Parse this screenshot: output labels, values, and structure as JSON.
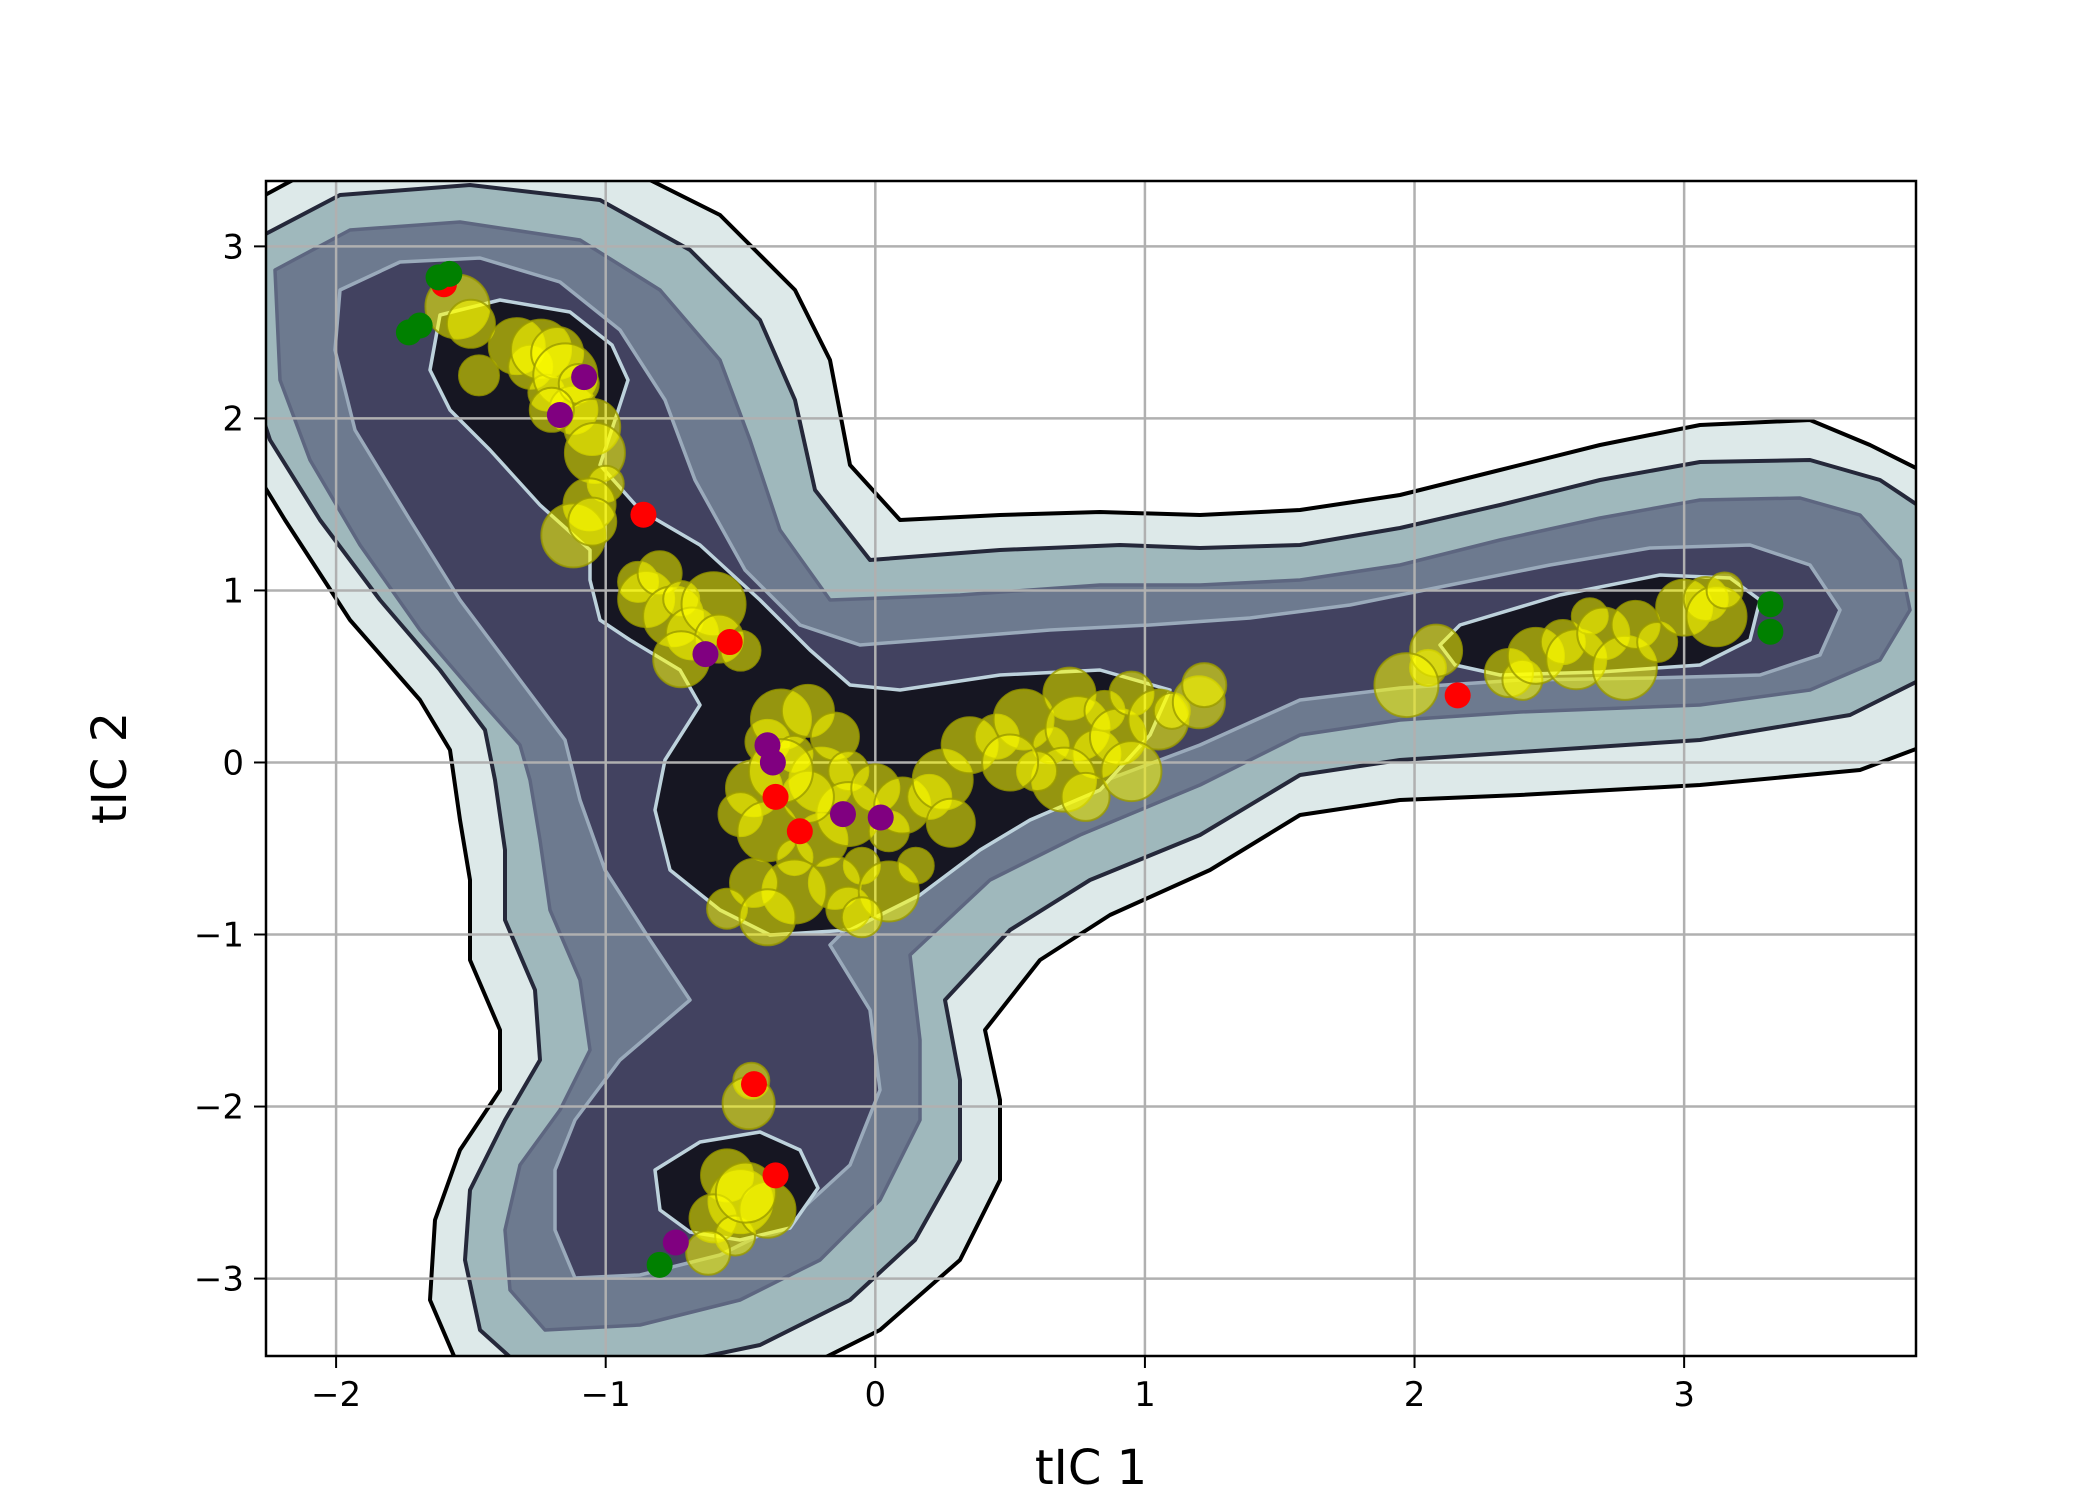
{
  "chart_data": {
    "type": "scatter",
    "title": "",
    "xlabel": "tIC 1",
    "ylabel": "tIC 2",
    "xlim": [
      -2.26,
      3.86
    ],
    "ylim": [
      -3.45,
      3.38
    ],
    "xticks": [
      -2,
      -1,
      0,
      1,
      2,
      3
    ],
    "yticks": [
      -3,
      -2,
      -1,
      0,
      1,
      2,
      3
    ],
    "grid": true,
    "legend": "none",
    "colors": {
      "background": "#ffffff",
      "contour_levels": [
        "#dde9e9",
        "#9fb8bc",
        "#6d7a8f",
        "#424260",
        "#161622"
      ],
      "contour_lines": [
        "#000000",
        "#25283a",
        "#5d6680",
        "#9aaabb",
        "#bdd2dc"
      ],
      "frames": "#ffff00",
      "frames_alt": "#9a9a00",
      "red_markers": "#ff0000",
      "purple_markers": "#800080",
      "green_markers": "#008000",
      "grid": "#b0b0b0"
    },
    "series": [
      {
        "marker": "circle",
        "color": "#ffff00",
        "points": [
          [
            -1.55,
            2.65
          ],
          [
            -1.5,
            2.55
          ],
          [
            -1.47,
            2.25
          ],
          [
            -1.33,
            2.42
          ],
          [
            -1.28,
            2.3
          ],
          [
            -1.24,
            2.4
          ],
          [
            -1.22,
            2.15
          ],
          [
            -1.18,
            2.38
          ],
          [
            -1.15,
            2.25
          ],
          [
            -1.12,
            2.05
          ],
          [
            -1.1,
            2.2
          ],
          [
            -1.05,
            1.95
          ],
          [
            -1.2,
            2.05
          ],
          [
            -1.04,
            1.8
          ],
          [
            -1.0,
            1.62
          ],
          [
            -1.06,
            1.5
          ],
          [
            -1.12,
            1.32
          ],
          [
            -1.05,
            1.4
          ],
          [
            -0.88,
            1.05
          ],
          [
            -0.85,
            0.95
          ],
          [
            -0.8,
            1.1
          ],
          [
            -0.75,
            0.85
          ],
          [
            -0.72,
            0.95
          ],
          [
            -0.68,
            0.75
          ],
          [
            -0.6,
            0.92
          ],
          [
            -0.58,
            0.72
          ],
          [
            -0.5,
            0.65
          ],
          [
            -0.72,
            0.6
          ],
          [
            -0.4,
            0.12
          ],
          [
            -0.35,
            0.25
          ],
          [
            -0.3,
            0.05
          ],
          [
            -0.25,
            0.3
          ],
          [
            -0.2,
            -0.1
          ],
          [
            -0.15,
            0.15
          ],
          [
            -0.1,
            -0.05
          ],
          [
            -0.45,
            -0.15
          ],
          [
            -0.5,
            -0.3
          ],
          [
            -0.4,
            -0.4
          ],
          [
            -0.3,
            -0.55
          ],
          [
            -0.2,
            -0.45
          ],
          [
            -0.1,
            -0.3
          ],
          [
            0.0,
            -0.15
          ],
          [
            0.05,
            -0.4
          ],
          [
            0.1,
            -0.25
          ],
          [
            0.2,
            -0.2
          ],
          [
            0.25,
            -0.1
          ],
          [
            -0.05,
            -0.6
          ],
          [
            -0.15,
            -0.7
          ],
          [
            -0.3,
            -0.75
          ],
          [
            -0.45,
            -0.7
          ],
          [
            -0.55,
            -0.85
          ],
          [
            -0.4,
            -0.9
          ],
          [
            -0.1,
            -0.85
          ],
          [
            0.05,
            -0.75
          ],
          [
            0.15,
            -0.6
          ],
          [
            -0.25,
            -0.2
          ],
          [
            -0.35,
            -0.05
          ],
          [
            0.28,
            -0.35
          ],
          [
            -0.05,
            -0.9
          ],
          [
            0.35,
            0.1
          ],
          [
            0.45,
            0.15
          ],
          [
            0.55,
            0.25
          ],
          [
            0.65,
            0.1
          ],
          [
            0.72,
            0.4
          ],
          [
            0.75,
            0.2
          ],
          [
            0.82,
            0.05
          ],
          [
            0.85,
            0.3
          ],
          [
            0.9,
            0.15
          ],
          [
            0.95,
            0.4
          ],
          [
            1.05,
            0.25
          ],
          [
            1.1,
            0.3
          ],
          [
            1.2,
            0.35
          ],
          [
            0.7,
            -0.1
          ],
          [
            0.78,
            -0.2
          ],
          [
            0.6,
            -0.05
          ],
          [
            0.5,
            0.0
          ],
          [
            1.22,
            0.45
          ],
          [
            0.95,
            -0.05
          ],
          [
            2.05,
            0.55
          ],
          [
            2.08,
            0.65
          ],
          [
            1.97,
            0.45
          ],
          [
            2.35,
            0.52
          ],
          [
            2.4,
            0.48
          ],
          [
            2.45,
            0.62
          ],
          [
            2.55,
            0.7
          ],
          [
            2.6,
            0.6
          ],
          [
            2.65,
            0.85
          ],
          [
            2.7,
            0.75
          ],
          [
            2.78,
            0.55
          ],
          [
            2.82,
            0.8
          ],
          [
            2.9,
            0.7
          ],
          [
            3.0,
            0.9
          ],
          [
            3.08,
            0.95
          ],
          [
            3.12,
            0.85
          ],
          [
            3.15,
            1.0
          ],
          [
            -0.55,
            -2.4
          ],
          [
            -0.5,
            -2.55
          ],
          [
            -0.6,
            -2.65
          ],
          [
            -0.52,
            -2.75
          ],
          [
            -0.4,
            -2.6
          ],
          [
            -0.62,
            -2.85
          ],
          [
            -0.48,
            -2.5
          ],
          [
            -0.46,
            -1.85
          ],
          [
            -0.47,
            -1.98
          ]
        ]
      },
      {
        "marker": "circle",
        "color": "#ff0000",
        "points": [
          [
            -1.6,
            2.78
          ],
          [
            -0.86,
            1.44
          ],
          [
            -0.54,
            0.7
          ],
          [
            -0.37,
            -0.2
          ],
          [
            -0.28,
            -0.4
          ],
          [
            2.16,
            0.39
          ],
          [
            -0.45,
            -1.87
          ],
          [
            -0.37,
            -2.4
          ]
        ]
      },
      {
        "marker": "circle",
        "color": "#800080",
        "points": [
          [
            -1.08,
            2.24
          ],
          [
            -1.17,
            2.02
          ],
          [
            -0.63,
            0.63
          ],
          [
            -0.4,
            0.1
          ],
          [
            -0.38,
            0.0
          ],
          [
            -0.12,
            -0.3
          ],
          [
            0.02,
            -0.32
          ],
          [
            -0.74,
            -2.79
          ]
        ]
      },
      {
        "marker": "circle",
        "color": "#008000",
        "points": [
          [
            -1.62,
            2.82
          ],
          [
            -1.58,
            2.84
          ],
          [
            -1.73,
            2.5
          ],
          [
            -1.69,
            2.54
          ],
          [
            3.32,
            0.92
          ],
          [
            3.32,
            0.76
          ],
          [
            -0.8,
            -2.92
          ]
        ]
      }
    ]
  }
}
